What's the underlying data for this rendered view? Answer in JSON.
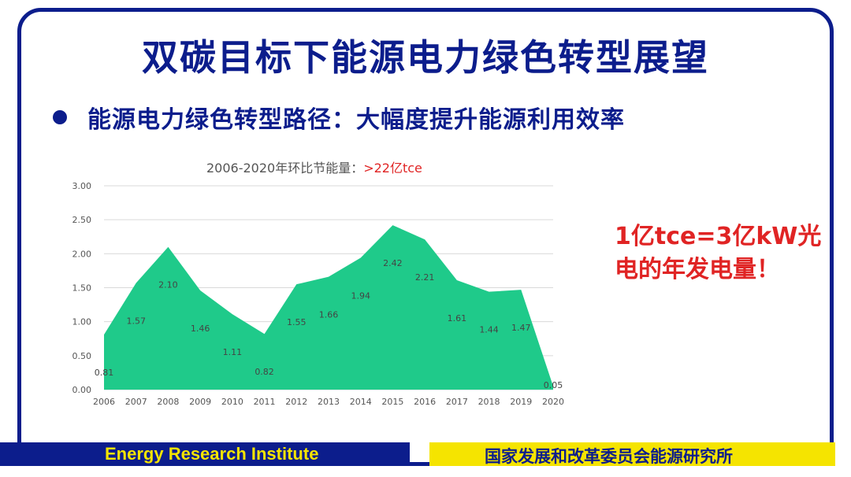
{
  "slide": {
    "title": "双碳目标下能源电力绿色转型展望",
    "bullet": "能源电力绿色转型路径：大幅度提升能源利用效率",
    "callout_line1": "1亿tce=3亿kW光",
    "callout_line2": "电的年发电量！",
    "footer_left": "Energy Research Institute",
    "footer_right": "国家发展和改革委员会能源研究所"
  },
  "colors": {
    "brand_blue": "#0c1d8c",
    "area_fill": "#1fca8a",
    "accent_red": "#e02424",
    "footer_yellow": "#f5e400"
  },
  "chart_data": {
    "type": "area",
    "title_main": "2006-2020年环比节能量：",
    "title_highlight": ">22亿tce",
    "categories": [
      "2006",
      "2007",
      "2008",
      "2009",
      "2010",
      "2011",
      "2012",
      "2013",
      "2014",
      "2015",
      "2016",
      "2017",
      "2018",
      "2019",
      "2020"
    ],
    "values": [
      0.81,
      1.57,
      2.1,
      1.46,
      1.11,
      0.82,
      1.55,
      1.66,
      1.94,
      2.42,
      2.21,
      1.61,
      1.44,
      1.47,
      0.05
    ],
    "value_labels": [
      "0.81",
      "1.57",
      "2.10",
      "1.46",
      "1.11",
      "0.82",
      "1.55",
      "1.66",
      "1.94",
      "2.42",
      "2.21",
      "1.61",
      "1.44",
      "1.47",
      "0.05"
    ],
    "y_ticks": [
      "0.00",
      "0.50",
      "1.00",
      "1.50",
      "2.00",
      "2.50",
      "3.00"
    ],
    "ylim": [
      0,
      3
    ],
    "grid": true,
    "xlabel": "",
    "ylabel": ""
  }
}
